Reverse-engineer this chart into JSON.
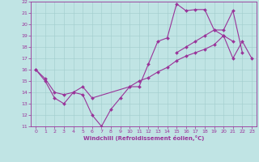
{
  "title": "",
  "xlabel": "Windchill (Refroidissement éolien,°C)",
  "ylabel": "",
  "xlim": [
    -0.5,
    23.5
  ],
  "ylim": [
    11,
    22
  ],
  "xticks": [
    0,
    1,
    2,
    3,
    4,
    5,
    6,
    7,
    8,
    9,
    10,
    11,
    12,
    13,
    14,
    15,
    16,
    17,
    18,
    19,
    20,
    21,
    22,
    23
  ],
  "yticks": [
    11,
    12,
    13,
    14,
    15,
    16,
    17,
    18,
    19,
    20,
    21,
    22
  ],
  "bg_color": "#c0e4e4",
  "grid_color": "#a0cccc",
  "line_color": "#993399",
  "line_width": 0.8,
  "marker": "D",
  "marker_size": 2.0,
  "series": [
    {
      "x": [
        0,
        1,
        2,
        3,
        4,
        5,
        6,
        7,
        8,
        9,
        10,
        11,
        12,
        13,
        14,
        15,
        16,
        17,
        18,
        19,
        20,
        21
      ],
      "y": [
        16,
        15,
        13.5,
        13,
        14,
        13.8,
        12,
        11,
        12.5,
        13.5,
        14.5,
        14.5,
        16.5,
        18.5,
        18.8,
        21.8,
        21.2,
        21.3,
        21.3,
        19.5,
        19.0,
        18.5
      ]
    },
    {
      "x": [
        0,
        1,
        2,
        3,
        4,
        5,
        6,
        10,
        11,
        12,
        13,
        14,
        15,
        16,
        17,
        18,
        19,
        20,
        21,
        22,
        23
      ],
      "y": [
        16,
        15.2,
        14,
        13.8,
        14,
        14.5,
        13.5,
        14.5,
        15,
        15.3,
        15.8,
        16.2,
        16.8,
        17.2,
        17.5,
        17.8,
        18.2,
        19.0,
        17.0,
        18.5,
        17.0
      ]
    },
    {
      "x": [
        15,
        16,
        17,
        18,
        19,
        20,
        21,
        22,
        23
      ],
      "y": [
        17.5,
        18.0,
        18.5,
        19.0,
        19.5,
        19.5,
        21.2,
        17.5,
        null
      ]
    }
  ]
}
